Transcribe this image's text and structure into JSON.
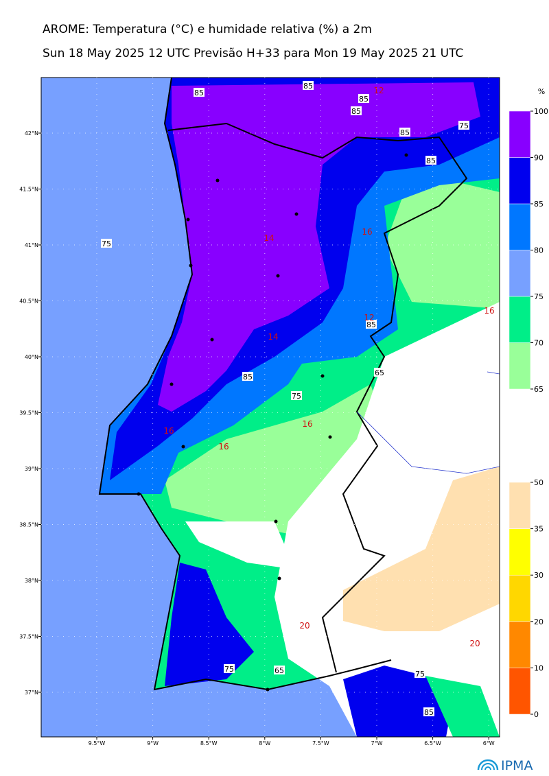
{
  "header": {
    "title": "AROME: Temperatura (°C) e humidade relativa (%) a 2m",
    "subtitle": "Sun 18 May 2025 12 UTC Previsão H+33 para Mon 19 May 2025 21 UTC"
  },
  "map": {
    "lat_labels": [
      "42°N",
      "41.5°N",
      "41°N",
      "40.5°N",
      "40°N",
      "39.5°N",
      "39°N",
      "38.5°N",
      "38°N",
      "37.5°N",
      "37°N"
    ],
    "lon_labels": [
      "9.5°W",
      "9°W",
      "8.5°W",
      "8°W",
      "7.5°W",
      "7°W",
      "6.5°W",
      "6°W"
    ],
    "humidity_contour_labels": [
      "85",
      "85",
      "85",
      "85",
      "85",
      "85",
      "85",
      "85",
      "85",
      "75",
      "75",
      "75",
      "75",
      "75",
      "65",
      "65"
    ],
    "temperature_contour_labels": [
      "12",
      "12",
      "14",
      "14",
      "16",
      "16",
      "16",
      "16",
      "16",
      "20",
      "20"
    ]
  },
  "humidity_colorbar": {
    "unit": "%",
    "ticks": [
      65,
      70,
      75,
      80,
      85,
      90,
      100
    ],
    "colors": [
      "#99ff99",
      "#00ee88",
      "#77a0ff",
      "#0077ff",
      "#0000ee",
      "#8800ff"
    ]
  },
  "temperature_colorbar": {
    "ticks": [
      0,
      10,
      20,
      30,
      35,
      50
    ],
    "colors": [
      "#ff5500",
      "#ff8800",
      "#ffd700",
      "#ffff00",
      "#ffe0b0"
    ]
  },
  "logo": "IPMA"
}
